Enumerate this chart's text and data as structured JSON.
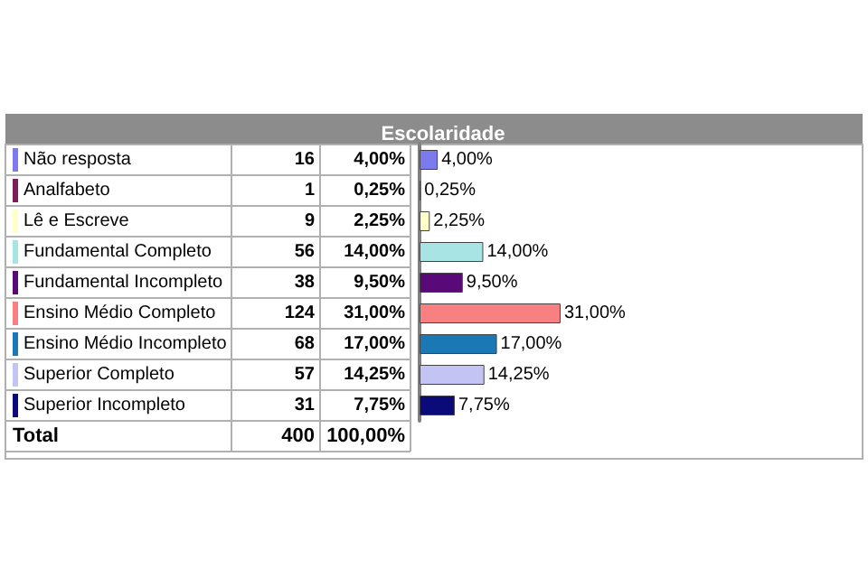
{
  "chart_data": {
    "type": "bar",
    "orientation": "horizontal",
    "title": "Escolaridade",
    "categories": [
      "Não resposta",
      "Analfabeto",
      "Lê e Escreve",
      "Fundamental Completo",
      "Fundamental Incompleto",
      "Ensino Médio Completo",
      "Ensino Médio Incompleto",
      "Superior Completo",
      "Superior Incompleto"
    ],
    "values": [
      4,
      0.25,
      2.25,
      14,
      9.5,
      31,
      17,
      14.25,
      7.75
    ],
    "value_labels": [
      "4,00%",
      "0,25%",
      "2,25%",
      "14,00%",
      "9,50%",
      "31,00%",
      "17,00%",
      "14,25%",
      "7,75%"
    ],
    "colors": [
      "#7b7bee",
      "#7a1f5a",
      "#ffffc8",
      "#a8e4e4",
      "#5a0a78",
      "#f88080",
      "#1a78b4",
      "#c4c4f4",
      "#0a0a78"
    ],
    "annotations": [
      "16",
      "1",
      "9",
      "56",
      "38",
      "124",
      "68",
      "57",
      "31",
      "Total",
      "400",
      "100,00%"
    ]
  }
}
